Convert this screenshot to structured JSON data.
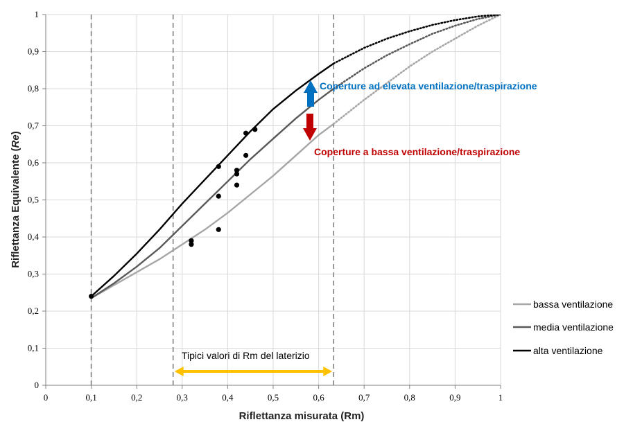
{
  "chart_data": {
    "type": "line",
    "xlabel": "Riflettanza misurata (Rm)",
    "ylabel_main": "Riflettanza Equivalente (",
    "ylabel_italic": "Re",
    "ylabel_end": ")",
    "xlim": [
      0,
      1
    ],
    "ylim": [
      0,
      1
    ],
    "x_ticks": [
      "0",
      "0,1",
      "0,2",
      "0,3",
      "0,4",
      "0,5",
      "0,6",
      "0,7",
      "0,8",
      "0,9",
      "1"
    ],
    "y_ticks": [
      "0",
      "0,1",
      "0,2",
      "0,3",
      "0,4",
      "0,5",
      "0,6",
      "0,7",
      "0,8",
      "0,9",
      "1"
    ],
    "grid": true,
    "legend_position": "right",
    "series": [
      {
        "name": "bassa ventilazione",
        "color": "#a6a6a6",
        "x": [
          0.1,
          0.15,
          0.2,
          0.25,
          0.3,
          0.35,
          0.4,
          0.45,
          0.5,
          0.55,
          0.6,
          0.633
        ],
        "y": [
          0.235,
          0.27,
          0.305,
          0.34,
          0.38,
          0.42,
          0.465,
          0.515,
          0.565,
          0.62,
          0.675,
          0.705
        ],
        "dotted_x": [
          0.633,
          0.7,
          0.75,
          0.8,
          0.85,
          0.9,
          0.95,
          1.0
        ],
        "dotted_y": [
          0.705,
          0.77,
          0.815,
          0.86,
          0.9,
          0.935,
          0.97,
          1.0
        ]
      },
      {
        "name": "media ventilazione",
        "color": "#595959",
        "x": [
          0.1,
          0.15,
          0.2,
          0.25,
          0.3,
          0.35,
          0.4,
          0.45,
          0.5,
          0.55,
          0.6,
          0.633
        ],
        "y": [
          0.235,
          0.275,
          0.32,
          0.37,
          0.43,
          0.49,
          0.55,
          0.61,
          0.665,
          0.72,
          0.77,
          0.8
        ],
        "dotted_x": [
          0.633,
          0.7,
          0.75,
          0.8,
          0.85,
          0.9,
          0.95,
          1.0
        ],
        "dotted_y": [
          0.8,
          0.855,
          0.89,
          0.92,
          0.948,
          0.97,
          0.988,
          1.0
        ]
      },
      {
        "name": "alta ventilazione",
        "color": "#000000",
        "x": [
          0.1,
          0.15,
          0.2,
          0.25,
          0.3,
          0.35,
          0.4,
          0.45,
          0.5,
          0.55,
          0.6,
          0.633
        ],
        "y": [
          0.24,
          0.295,
          0.355,
          0.42,
          0.49,
          0.555,
          0.62,
          0.685,
          0.745,
          0.795,
          0.84,
          0.868
        ],
        "dotted_x": [
          0.633,
          0.7,
          0.75,
          0.8,
          0.85,
          0.9,
          0.95,
          1.0
        ],
        "dotted_y": [
          0.868,
          0.91,
          0.935,
          0.955,
          0.972,
          0.985,
          0.995,
          1.0
        ]
      }
    ],
    "points": [
      {
        "x": 0.1,
        "y": 0.24
      },
      {
        "x": 0.32,
        "y": 0.39
      },
      {
        "x": 0.32,
        "y": 0.38
      },
      {
        "x": 0.38,
        "y": 0.59
      },
      {
        "x": 0.38,
        "y": 0.51
      },
      {
        "x": 0.38,
        "y": 0.42
      },
      {
        "x": 0.42,
        "y": 0.58
      },
      {
        "x": 0.42,
        "y": 0.57
      },
      {
        "x": 0.42,
        "y": 0.54
      },
      {
        "x": 0.44,
        "y": 0.68
      },
      {
        "x": 0.44,
        "y": 0.62
      },
      {
        "x": 0.46,
        "y": 0.69
      }
    ],
    "vlines": [
      0.1,
      0.28,
      0.633
    ],
    "annotations": {
      "up_text": "Coperture ad elevata ventilazione/traspirazione",
      "up_color": "#0070c0",
      "down_text": "Coperture a bassa ventilazione/traspirazione",
      "down_color": "#c00000",
      "range_text": "Tipici valori di Rm del laterizio",
      "range_color": "#ffc000",
      "range_x": [
        0.28,
        0.633
      ]
    }
  }
}
